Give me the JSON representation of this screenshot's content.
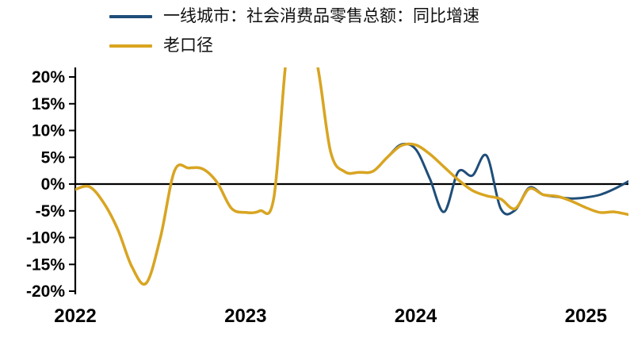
{
  "page": {
    "background": "#ffffff"
  },
  "chart_data": {
    "type": "line",
    "frequency": "monthly",
    "x_start": "2022-01",
    "x_end": "2025-04",
    "ylim": [
      -20,
      20
    ],
    "grid": false,
    "zero_line": true,
    "legend_position": "top-left",
    "yticks": [
      {
        "label": "20%",
        "value": 20
      },
      {
        "label": "15%",
        "value": 15
      },
      {
        "label": "10%",
        "value": 10
      },
      {
        "label": "5%",
        "value": 5
      },
      {
        "label": "0%",
        "value": 0
      },
      {
        "label": "-5%",
        "value": -5
      },
      {
        "label": "-10%",
        "value": -10
      },
      {
        "label": "-15%",
        "value": -15
      },
      {
        "label": "-20%",
        "value": -20
      }
    ],
    "xticks": [
      {
        "label": "2022",
        "month_index": 0
      },
      {
        "label": "2023",
        "month_index": 12
      },
      {
        "label": "2024",
        "month_index": 24
      },
      {
        "label": "2025",
        "month_index": 36
      }
    ],
    "series": [
      {
        "name": "一线城市：社会消费品零售总额：同比增速",
        "color": "#1F4E79",
        "values": [
          -1.0,
          -0.5,
          -3.5,
          -8.5,
          -15.5,
          -18.5,
          -10.0,
          2.5,
          3.0,
          2.8,
          0.3,
          -4.5,
          -5.3,
          -5.0,
          -2.5,
          26.0,
          26.0,
          23.0,
          6.0,
          2.3,
          2.2,
          2.4,
          5.0,
          7.4,
          6.5,
          1.0,
          -5.2,
          2.3,
          1.6,
          5.3,
          -4.6,
          -4.9,
          -0.7,
          -2.0,
          -2.4,
          -2.7,
          -2.5,
          -2.0,
          -0.9,
          0.5
        ]
      },
      {
        "name": "老口径",
        "color": "#D9A521",
        "values": [
          -1.0,
          -0.5,
          -3.5,
          -8.5,
          -15.5,
          -18.5,
          -10.0,
          2.5,
          3.0,
          2.8,
          0.3,
          -4.5,
          -5.3,
          -5.0,
          -2.5,
          26.0,
          26.0,
          23.0,
          6.0,
          2.3,
          2.2,
          2.4,
          5.0,
          7.2,
          7.3,
          5.6,
          3.2,
          0.8,
          -1.2,
          -2.2,
          -2.8,
          -4.6,
          -0.9,
          -2.0,
          -2.3,
          -3.2,
          -4.4,
          -5.3,
          -5.2,
          -5.7
        ]
      }
    ]
  }
}
